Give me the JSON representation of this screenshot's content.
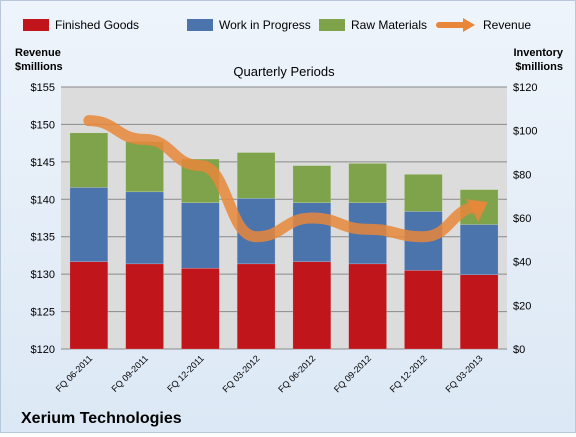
{
  "chart_data": {
    "type": "bar",
    "subtitle": "Quarterly Periods",
    "company": "Xerium Technologies",
    "left_axis": {
      "label_line1": "Revenue",
      "label_line2": "$millions",
      "min": 120,
      "max": 155,
      "ticks": [
        "$120",
        "$125",
        "$130",
        "$135",
        "$140",
        "$145",
        "$150",
        "$155"
      ]
    },
    "right_axis": {
      "label_line1": "Inventory",
      "label_line2": "$millions",
      "min": 0,
      "max": 120,
      "ticks": [
        "$0",
        "$20",
        "$40",
        "$60",
        "$80",
        "$100",
        "$120"
      ]
    },
    "categories": [
      "FQ 06-2011",
      "FQ 09-2011",
      "FQ 12-2011",
      "FQ 03-2012",
      "FQ 06-2012",
      "FQ 09-2012",
      "FQ 12-2012",
      "FQ 03-2013"
    ],
    "series": [
      {
        "name": "Finished Goods",
        "axis": "right",
        "stack": true,
        "color": "#c0151b",
        "values": [
          40,
          39,
          37,
          39,
          40,
          39,
          36,
          34
        ]
      },
      {
        "name": "Work in Progress",
        "axis": "right",
        "stack": true,
        "color": "#4b74ad",
        "values": [
          34,
          33,
          30,
          30,
          27,
          28,
          27,
          23
        ]
      },
      {
        "name": "Raw Materials",
        "axis": "right",
        "stack": true,
        "color": "#7fa34a",
        "values": [
          25,
          23,
          20,
          21,
          17,
          18,
          17,
          16
        ]
      },
      {
        "name": "Revenue",
        "axis": "left",
        "type": "line",
        "color": "#e8873a",
        "values": [
          150.5,
          148.0,
          144.5,
          135.0,
          137.5,
          136.0,
          135.0,
          139.0
        ]
      }
    ],
    "legend_position": "top",
    "grid": true
  }
}
